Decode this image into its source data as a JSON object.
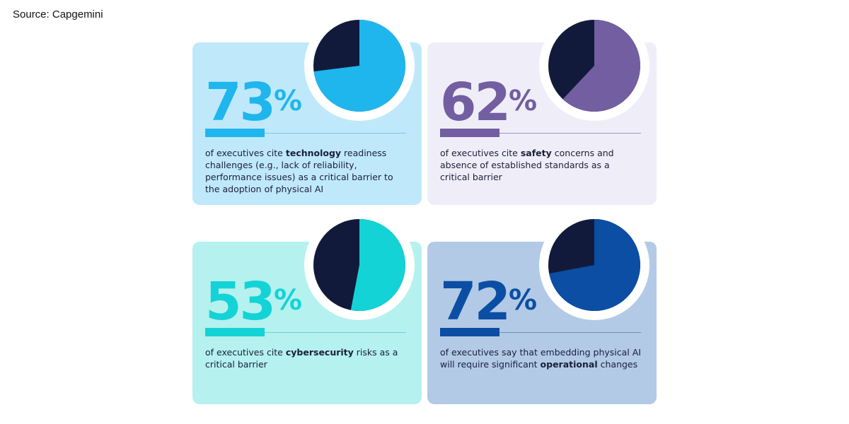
{
  "source": "Source: Capgemini",
  "colors": {
    "dark_slice": "#121a3c",
    "ring": "#ffffff"
  },
  "chart_data": [
    {
      "type": "pie",
      "value_label": "73",
      "percent_symbol": "%",
      "values": [
        73,
        27
      ],
      "accent": "#1fb6ee",
      "card_bg": "#bfe9fb",
      "thin_rule": "#7fc6e8",
      "text_before": "of executives cite ",
      "text_bold": "technology",
      "text_after": " readiness challenges (e.g., lack of reliability, performance issues) as a critical barrier to the adoption of physical AI"
    },
    {
      "type": "pie",
      "value_label": "62",
      "percent_symbol": "%",
      "values": [
        62,
        38
      ],
      "accent": "#725ea0",
      "card_bg": "#efeef8",
      "thin_rule": "#9b92c4",
      "text_before": "of executives cite ",
      "text_bold": "safety",
      "text_after": " concerns and absence of established standards as a critical barrier"
    },
    {
      "type": "pie",
      "value_label": "53",
      "percent_symbol": "%",
      "values": [
        53,
        47
      ],
      "accent": "#14d3d6",
      "card_bg": "#b4f1ef",
      "thin_rule": "#6fd0cf",
      "text_before": "of executives cite ",
      "text_bold": "cybersecurity",
      "text_after": " risks as a critical barrier"
    },
    {
      "type": "pie",
      "value_label": "72",
      "percent_symbol": "%",
      "values": [
        72,
        28
      ],
      "accent": "#0b4ea4",
      "card_bg": "#b2cae6",
      "thin_rule": "#6f8fb8",
      "text_before": "of executives say that embedding physical AI will require significant ",
      "text_bold": "operational",
      "text_after": " changes"
    }
  ]
}
